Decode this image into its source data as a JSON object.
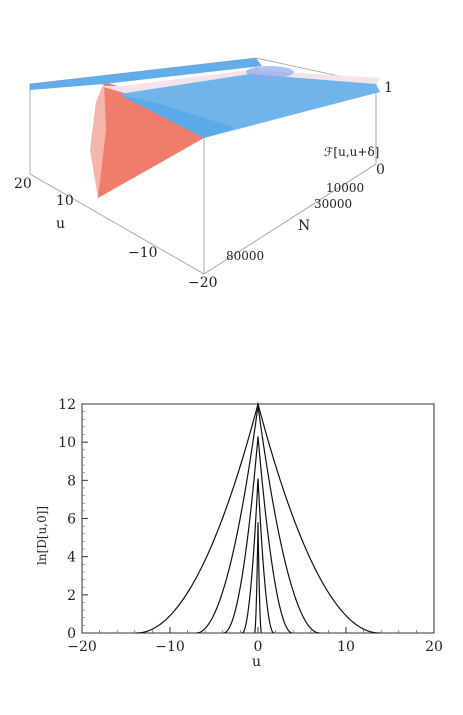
{
  "chart_data": [
    {
      "type": "surface",
      "zlabel": "ℱ[u,u+δ]",
      "xlabel": "u",
      "ylabel": "N",
      "x_ticks": [
        "20",
        "10",
        "u",
        "−10",
        "−20"
      ],
      "y_ticks": [
        "10000",
        "30000",
        "80000"
      ],
      "z_ticks": [
        "1",
        "0"
      ],
      "xlim": [
        -20,
        20
      ],
      "ylim": [
        0,
        100000
      ],
      "zlim": [
        0,
        1
      ],
      "colors": {
        "plateau": "#5aa9e8",
        "dip": "#f07d6c",
        "ridge": "#f6e3ea"
      }
    },
    {
      "type": "line",
      "xlabel": "u",
      "ylabel": "ln[D[u,0]]",
      "xlim": [
        -20,
        20
      ],
      "ylim": [
        0,
        12
      ],
      "x_ticks": [
        "−20",
        "−10",
        "0",
        "10",
        "20"
      ],
      "y_ticks": [
        "0",
        "2",
        "4",
        "6",
        "8",
        "10",
        "12"
      ],
      "series": [
        {
          "peak": 5.8,
          "root": 0.4
        },
        {
          "peak": 8.1,
          "root": 1.8
        },
        {
          "peak": 10.3,
          "root": 3.9
        },
        {
          "peak": 11.9,
          "root": 7.0
        },
        {
          "peak": 12.0,
          "root": 13.8
        }
      ]
    }
  ]
}
